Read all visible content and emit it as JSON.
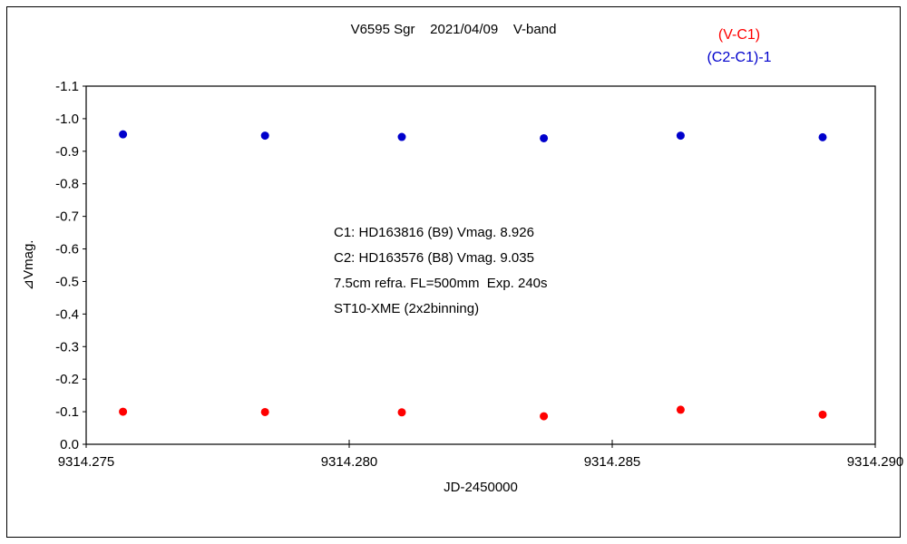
{
  "title": "V6595 Sgr    2021/04/09    V-band",
  "legend": {
    "items": [
      {
        "id": "v-c1",
        "label": "(V-C1)",
        "color": "#ff0000"
      },
      {
        "id": "c2-c1-minus-1",
        "label": "(C2-C1)-1",
        "color": "#0000cc"
      }
    ]
  },
  "annotation": {
    "lines": [
      "C1: HD163816 (B9) Vmag. 8.926",
      "C2: HD163576 (B8) Vmag. 9.035",
      "7.5cm refra. FL=500mm  Exp. 240s",
      "ST10-XME (2x2binning)"
    ]
  },
  "chart_data": {
    "type": "scatter",
    "title": "V6595 Sgr 2021/04/09 V-band",
    "xlabel": "JD-2450000",
    "ylabel": "⊿Vmag.",
    "xlim": [
      9314.275,
      9314.29
    ],
    "ylim": [
      -1.1,
      0.0
    ],
    "y_axis_inverted": true,
    "grid": false,
    "legend_position": "top-right",
    "x_ticks": [
      {
        "value": 9314.275,
        "label": "9314.275"
      },
      {
        "value": 9314.28,
        "label": "9314.280"
      },
      {
        "value": 9314.285,
        "label": "9314.285"
      },
      {
        "value": 9314.29,
        "label": "9314.290"
      }
    ],
    "y_ticks": [
      {
        "value": -1.1,
        "label": "-1.1"
      },
      {
        "value": -1.0,
        "label": "-1.0"
      },
      {
        "value": -0.9,
        "label": "-0.9"
      },
      {
        "value": -0.8,
        "label": "-0.8"
      },
      {
        "value": -0.7,
        "label": "-0.7"
      },
      {
        "value": -0.6,
        "label": "-0.6"
      },
      {
        "value": -0.5,
        "label": "-0.5"
      },
      {
        "value": -0.4,
        "label": "-0.4"
      },
      {
        "value": -0.3,
        "label": "-0.3"
      },
      {
        "value": -0.2,
        "label": "-0.2"
      },
      {
        "value": -0.1,
        "label": "-0.1"
      },
      {
        "value": 0.0,
        "label": "0.0"
      }
    ],
    "series": [
      {
        "id": "v-c1",
        "name": "(V-C1)",
        "color": "#ff0000",
        "marker": "circle",
        "x": [
          9314.2757,
          9314.2784,
          9314.281,
          9314.2837,
          9314.2863,
          9314.289
        ],
        "y": [
          -0.1,
          -0.099,
          -0.098,
          -0.086,
          -0.106,
          -0.091
        ]
      },
      {
        "id": "c2-c1-minus-1",
        "name": "(C2-C1)-1",
        "color": "#0000cc",
        "marker": "circle",
        "x": [
          9314.2757,
          9314.2784,
          9314.281,
          9314.2837,
          9314.2863,
          9314.289
        ],
        "y": [
          -0.952,
          -0.948,
          -0.944,
          -0.94,
          -0.948,
          -0.943
        ]
      }
    ]
  }
}
